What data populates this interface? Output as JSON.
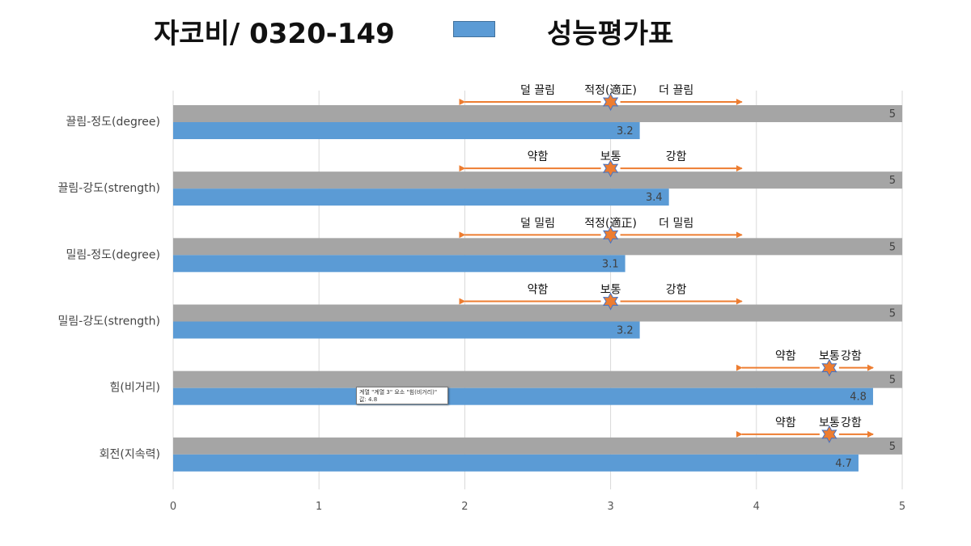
{
  "header": {
    "title": "자코비/ 0320-149",
    "legend_label": "성능평가표",
    "legend_color": "#5b9bd5"
  },
  "chart_data": {
    "type": "bar",
    "orientation": "horizontal",
    "categories": [
      "끌림-정도(degree)",
      "끌림-강도(strength)",
      "밀림-정도(degree)",
      "밀림-강도(strength)",
      "힘(비거리)",
      "회전(지속력)"
    ],
    "series": [
      {
        "color": "#a5a5a5",
        "values": [
          5,
          5,
          5,
          5,
          5,
          5
        ]
      },
      {
        "name": "성능평가표",
        "color": "#5b9bd5",
        "values": [
          3.2,
          3.4,
          3.1,
          3.2,
          4.8,
          4.7
        ]
      }
    ],
    "xlim": [
      0,
      5
    ],
    "xticks": [
      0,
      1,
      2,
      3,
      4,
      5
    ],
    "grid": true,
    "legend_position": "top",
    "annotations": [
      {
        "left": "덜 끌림",
        "center": "적정(適正)",
        "right": "더 끌림",
        "marker": 3.0,
        "from": 2.0,
        "to": 3.9
      },
      {
        "left": "약함",
        "center": "보통",
        "right": "강함",
        "marker": 3.0,
        "from": 2.0,
        "to": 3.9
      },
      {
        "left": "덜 밀림",
        "center": "적정(適正)",
        "right": "더 밀림",
        "marker": 3.0,
        "from": 2.0,
        "to": 3.9
      },
      {
        "left": "약함",
        "center": "보통",
        "right": "강함",
        "marker": 3.0,
        "from": 2.0,
        "to": 3.9
      },
      {
        "left": "약함",
        "center": "보통",
        "right": "강함",
        "marker": 4.5,
        "from": 3.9,
        "to": 4.8
      },
      {
        "left": "약함",
        "center": "보통",
        "right": "강함",
        "marker": 4.5,
        "from": 3.9,
        "to": 4.8
      }
    ],
    "annotation_color": "#ed7d31"
  },
  "tooltip": {
    "line1": "계열 \"계열 3\" 요소 \"힘(비거리)\"",
    "line2": "값: 4.8"
  }
}
